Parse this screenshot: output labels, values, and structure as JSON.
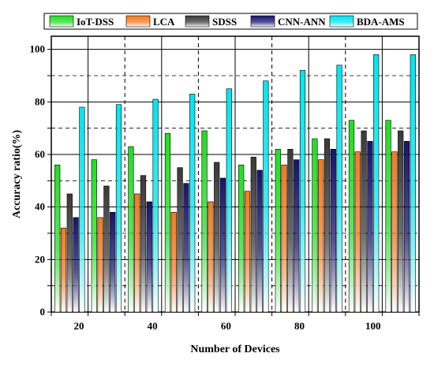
{
  "chart_data": {
    "type": "bar",
    "xlabel": "Number of Devices",
    "ylabel": "Accuracy ratio(%)",
    "x_ticks": [
      "20",
      "40",
      "60",
      "80",
      "100"
    ],
    "groups": 10,
    "y_ticks": [
      "0",
      "20",
      "40",
      "60",
      "80",
      "100"
    ],
    "ylim": [
      0,
      105
    ],
    "grid": "dashed",
    "legend_position": "top",
    "series": [
      {
        "name": "IoT-DSS",
        "color": "#22dd22",
        "values": [
          56,
          58,
          63,
          68,
          69,
          56,
          62,
          66,
          73,
          73
        ]
      },
      {
        "name": "LCA",
        "color": "#f47a20",
        "values": [
          32,
          36,
          45,
          38,
          42,
          46,
          56,
          58,
          61,
          61
        ]
      },
      {
        "name": "SDSS",
        "color": "#3a3a3a",
        "values": [
          45,
          48,
          52,
          55,
          57,
          59,
          62,
          66,
          69,
          69
        ]
      },
      {
        "name": "CNN-ANN",
        "color": "#15156e",
        "values": [
          36,
          38,
          42,
          49,
          51,
          54,
          58,
          62,
          65,
          65
        ]
      },
      {
        "name": "BDA-AMS",
        "color": "#00e5ee",
        "values": [
          78,
          79,
          81,
          83,
          85,
          88,
          92,
          94,
          98,
          98
        ]
      }
    ]
  }
}
